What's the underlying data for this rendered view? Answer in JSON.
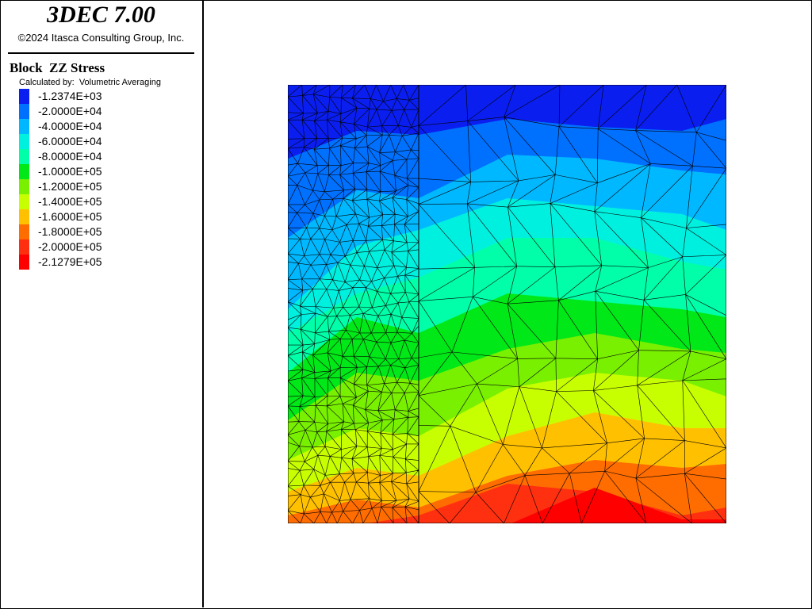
{
  "header": {
    "title": "3DEC 7.00",
    "copyright": "©2024 Itasca Consulting Group, Inc."
  },
  "legend": {
    "title": "Block  ZZ Stress",
    "subtitle": "Calculated by:  Volumetric Averaging",
    "entries": [
      {
        "label": "-1.2374E+03",
        "color": "#0a1ef0"
      },
      {
        "label": "-2.0000E+04",
        "color": "#0070ff"
      },
      {
        "label": "-4.0000E+04",
        "color": "#00b8ff"
      },
      {
        "label": "-6.0000E+04",
        "color": "#00f0e0"
      },
      {
        "label": "-8.0000E+04",
        "color": "#00ffa8"
      },
      {
        "label": "-1.0000E+05",
        "color": "#00e818"
      },
      {
        "label": "-1.2000E+05",
        "color": "#78f000"
      },
      {
        "label": "-1.4000E+05",
        "color": "#c8ff00"
      },
      {
        "label": "-1.6000E+05",
        "color": "#ffc000"
      },
      {
        "label": "-1.8000E+05",
        "color": "#ff6c00"
      },
      {
        "label": "-2.0000E+05",
        "color": "#ff3010"
      },
      {
        "label": "-2.1279E+05",
        "color": "#ff0000"
      }
    ]
  }
}
